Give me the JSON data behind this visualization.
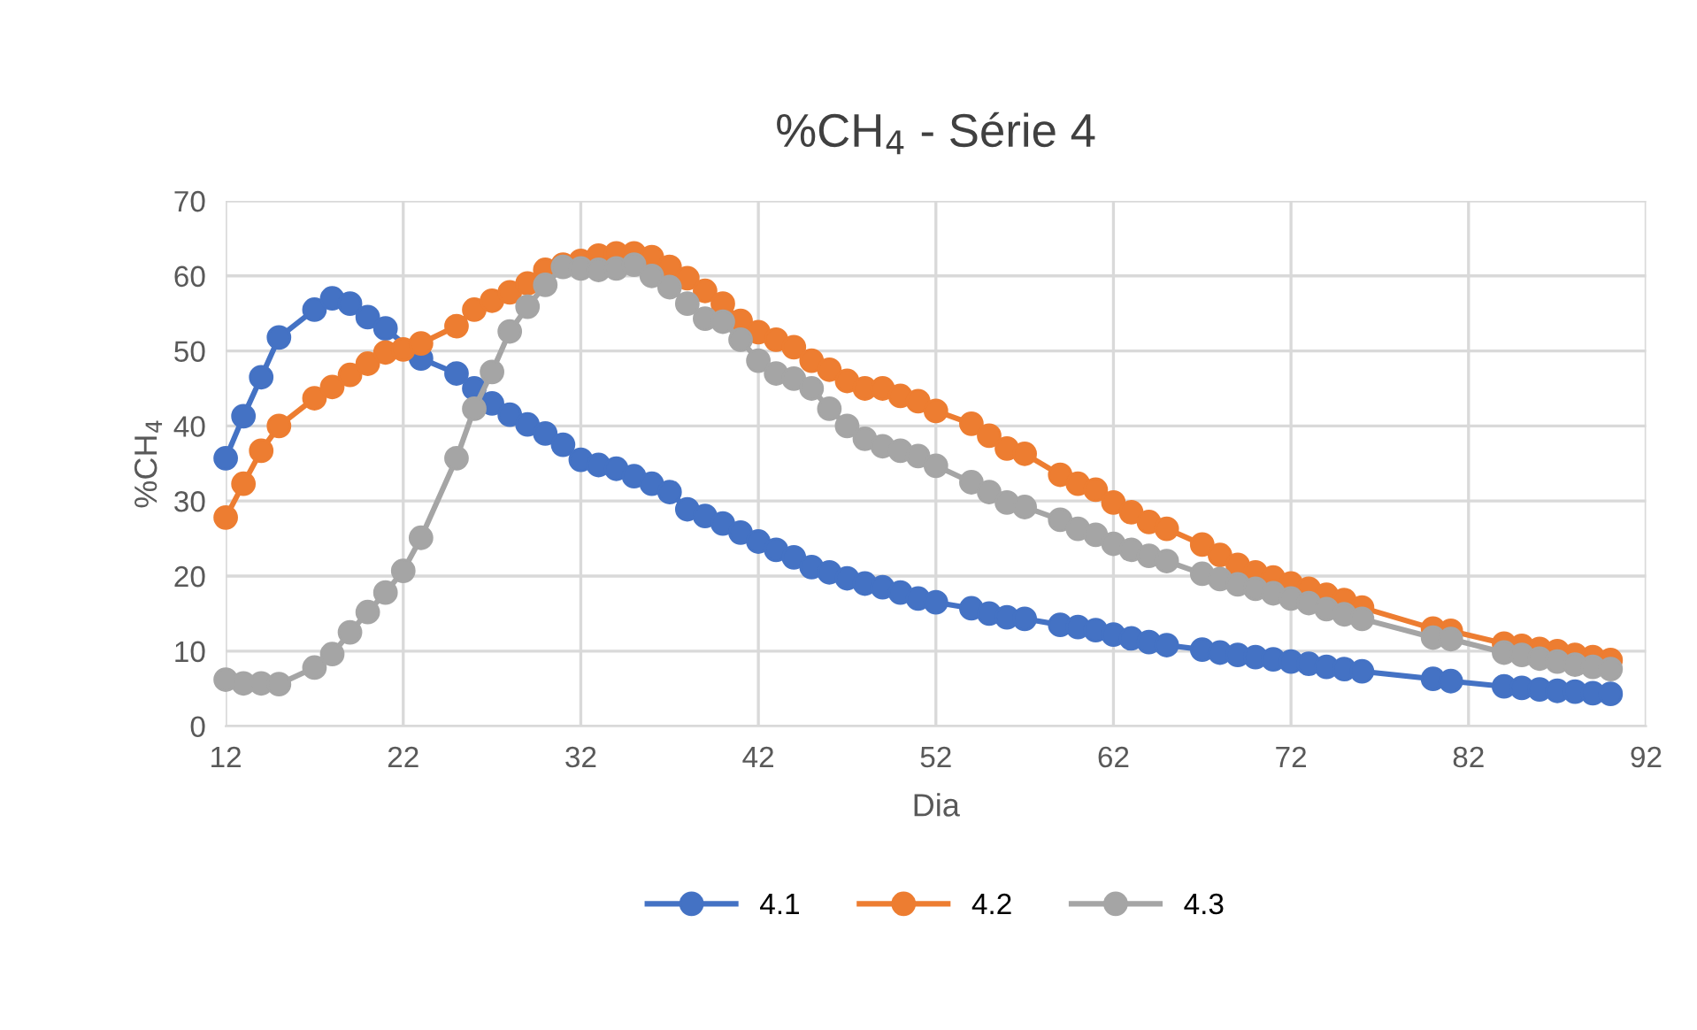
{
  "chart_data": {
    "type": "line",
    "title": "%CH$_{4}$ - Série 4",
    "xlabel": "Dia",
    "ylabel": "%CH$_{4}$",
    "xlim": [
      12,
      92
    ],
    "xticks": [
      12,
      22,
      32,
      42,
      52,
      62,
      72,
      82,
      92
    ],
    "ylim": [
      0,
      70
    ],
    "yticks": [
      0,
      10,
      20,
      30,
      40,
      50,
      60,
      70
    ],
    "grid": true,
    "legend": "bottom",
    "marker": "circle",
    "line_style": "solid",
    "series": [
      {
        "name": "4.1",
        "color": "#4472c4",
        "x": [
          12,
          13,
          14,
          15,
          17,
          18,
          19,
          20,
          21,
          23,
          25,
          26,
          27,
          28,
          29,
          30,
          31,
          32,
          33,
          34,
          35,
          36,
          37,
          38,
          39,
          40,
          41,
          42,
          43,
          44,
          45,
          46,
          47,
          48,
          49,
          50,
          51,
          52,
          54,
          55,
          56,
          57,
          59,
          60,
          61,
          62,
          63,
          64,
          65,
          67,
          68,
          69,
          70,
          71,
          72,
          73,
          74,
          75,
          76,
          80,
          81,
          84,
          85,
          86,
          87,
          88,
          89,
          90
        ],
        "values": [
          35.7,
          41.3,
          46.5,
          51.8,
          55.5,
          57,
          56.3,
          54.5,
          53,
          49,
          47,
          45,
          43,
          41.5,
          40.2,
          39,
          37.5,
          35.5,
          34.8,
          34.3,
          33.3,
          32.3,
          31.2,
          28.9,
          28,
          27,
          25.8,
          24.6,
          23.5,
          22.5,
          21.2,
          20.5,
          19.7,
          19,
          18.5,
          17.8,
          17,
          16.5,
          15.7,
          15,
          14.5,
          14.3,
          13.5,
          13.2,
          12.8,
          12.2,
          11.7,
          11.2,
          10.8,
          10.2,
          9.8,
          9.5,
          9.2,
          8.9,
          8.6,
          8.3,
          7.9,
          7.6,
          7.3,
          6.3,
          6,
          5.3,
          5.1,
          4.9,
          4.7,
          4.6,
          4.4,
          4.3
        ]
      },
      {
        "name": "4.2",
        "color": "#ed7d31",
        "x": [
          12,
          13,
          14,
          15,
          17,
          18,
          19,
          20,
          21,
          22,
          23,
          25,
          26,
          27,
          28,
          29,
          30,
          31,
          32,
          33,
          34,
          35,
          36,
          37,
          38,
          39,
          40,
          41,
          42,
          43,
          44,
          45,
          46,
          47,
          48,
          49,
          50,
          51,
          52,
          54,
          55,
          56,
          57,
          59,
          60,
          61,
          62,
          63,
          64,
          65,
          67,
          68,
          69,
          70,
          71,
          72,
          73,
          74,
          75,
          76,
          80,
          81,
          84,
          85,
          86,
          87,
          88,
          89,
          90
        ],
        "values": [
          27.8,
          32.3,
          36.7,
          40,
          43.7,
          45.2,
          46.8,
          48.3,
          49.8,
          50.2,
          51,
          53.3,
          55.5,
          56.7,
          57.8,
          59,
          60.8,
          61.5,
          62,
          62.7,
          63,
          63,
          62.5,
          61.2,
          59.7,
          58,
          56.3,
          54,
          52.5,
          51.5,
          50.5,
          48.7,
          47.5,
          46,
          45,
          45,
          44,
          43.3,
          42,
          40.3,
          38.7,
          37,
          36.3,
          33.5,
          32.3,
          31.5,
          29.8,
          28.5,
          27.2,
          26.3,
          24.2,
          22.8,
          21.5,
          20.5,
          19.8,
          19,
          18.3,
          17.5,
          16.8,
          15.8,
          13,
          12.7,
          11,
          10.7,
          10.3,
          10,
          9.5,
          9.2,
          8.8
        ]
      },
      {
        "name": "4.3",
        "color": "#a5a5a5",
        "x": [
          12,
          13,
          14,
          15,
          17,
          18,
          19,
          20,
          21,
          22,
          23,
          25,
          26,
          27,
          28,
          29,
          30,
          31,
          32,
          33,
          34,
          35,
          36,
          37,
          38,
          39,
          40,
          41,
          42,
          43,
          44,
          45,
          46,
          47,
          48,
          49,
          50,
          51,
          52,
          54,
          55,
          56,
          57,
          59,
          60,
          61,
          62,
          63,
          64,
          65,
          67,
          68,
          69,
          70,
          71,
          72,
          73,
          74,
          75,
          76,
          80,
          81,
          84,
          85,
          86,
          87,
          88,
          89,
          90
        ],
        "values": [
          6.2,
          5.7,
          5.7,
          5.6,
          7.8,
          9.6,
          12.5,
          15.2,
          17.8,
          20.7,
          25.1,
          35.7,
          42.3,
          47.2,
          52.6,
          55.9,
          58.8,
          61.2,
          61,
          60.8,
          61,
          61.5,
          60,
          58.5,
          56.3,
          54.3,
          53.9,
          51.5,
          48.7,
          47,
          46.3,
          45,
          42.3,
          40,
          38.3,
          37.3,
          36.7,
          36,
          34.7,
          32.5,
          31.2,
          29.8,
          29.2,
          27.5,
          26.3,
          25.5,
          24.3,
          23.5,
          22.7,
          22,
          20.3,
          19.6,
          18.9,
          18.3,
          17.7,
          17,
          16.4,
          15.6,
          14.9,
          14.3,
          11.8,
          11.6,
          9.8,
          9.5,
          9,
          8.6,
          8.2,
          7.9,
          7.6
        ]
      }
    ]
  }
}
